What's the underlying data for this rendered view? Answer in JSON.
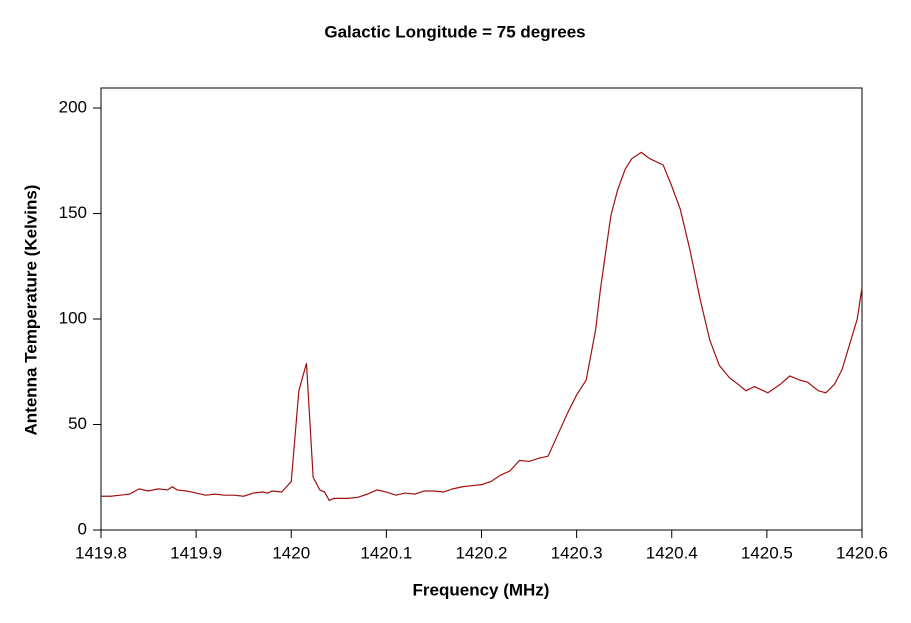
{
  "chart_data": {
    "type": "line",
    "title": "Galactic Longitude = 75 degrees",
    "xlabel": "Frequency (MHz)",
    "ylabel": "Antenna Temperature (Kelvins)",
    "xlim": [
      1419.8,
      1420.6
    ],
    "xticks": [
      1419.8,
      1419.9,
      1420,
      1420.1,
      1420.2,
      1420.3,
      1420.4,
      1420.5,
      1420.6
    ],
    "ylim": [
      0,
      209.5
    ],
    "yticks": [
      0,
      50,
      100,
      150,
      200
    ],
    "series": [
      {
        "color": "#a01010",
        "x": [
          1419.8,
          1419.81,
          1419.82,
          1419.83,
          1419.84,
          1419.85,
          1419.86,
          1419.87,
          1419.875,
          1419.88,
          1419.89,
          1419.9,
          1419.91,
          1419.92,
          1419.93,
          1419.94,
          1419.95,
          1419.96,
          1419.97,
          1419.975,
          1419.98,
          1419.99,
          1420.0,
          1420.008,
          1420.016,
          1420.023,
          1420.03,
          1420.035,
          1420.04,
          1420.045,
          1420.05,
          1420.06,
          1420.07,
          1420.08,
          1420.09,
          1420.1,
          1420.11,
          1420.12,
          1420.13,
          1420.14,
          1420.15,
          1420.16,
          1420.17,
          1420.18,
          1420.19,
          1420.2,
          1420.21,
          1420.22,
          1420.23,
          1420.24,
          1420.25,
          1420.26,
          1420.27,
          1420.28,
          1420.29,
          1420.3,
          1420.31,
          1420.32,
          1420.325,
          1420.33,
          1420.336,
          1420.343,
          1420.351,
          1420.358,
          1420.368,
          1420.377,
          1420.391,
          1420.4,
          1420.409,
          1420.419,
          1420.43,
          1420.44,
          1420.45,
          1420.461,
          1420.47,
          1420.478,
          1420.487,
          1420.501,
          1420.514,
          1420.524,
          1420.535,
          1420.543,
          1420.554,
          1420.562,
          1420.571,
          1420.579,
          1420.587,
          1420.595,
          1420.6
        ],
        "values": [
          16,
          16,
          16.5,
          17,
          19.5,
          18.5,
          19.5,
          19,
          20.5,
          19,
          18.5,
          17.5,
          16.5,
          17,
          16.5,
          16.5,
          16,
          17.5,
          18,
          17.5,
          18.5,
          18,
          23,
          66,
          79,
          25,
          19,
          18,
          14,
          15,
          15,
          15,
          15.5,
          17,
          19,
          18,
          16.5,
          17.5,
          17,
          18.5,
          18.5,
          18,
          19.5,
          20.5,
          21,
          21.5,
          23,
          26,
          28,
          33,
          32.5,
          34,
          35,
          45,
          55,
          64,
          71,
          95,
          114,
          130,
          149,
          161,
          171,
          176,
          179,
          176,
          173,
          163,
          152,
          133,
          109,
          90,
          78,
          72,
          69,
          66,
          68,
          65,
          69,
          73,
          71,
          70,
          66,
          65,
          69,
          76,
          88,
          100,
          115
        ]
      }
    ]
  }
}
